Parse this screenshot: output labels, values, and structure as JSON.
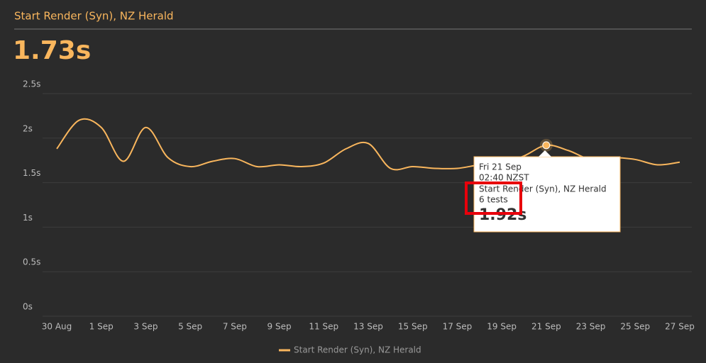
{
  "header": {
    "title": "Start Render (Syn), NZ Herald",
    "headline": "1.73s"
  },
  "chart_data": {
    "type": "line",
    "categories": [
      "30 Aug",
      null,
      "1 Sep",
      null,
      "3 Sep",
      null,
      "5 Sep",
      null,
      "7 Sep",
      null,
      "9 Sep",
      null,
      "11 Sep",
      null,
      "13 Sep",
      null,
      "15 Sep",
      null,
      "17 Sep",
      null,
      "19 Sep",
      null,
      "21 Sep",
      null,
      "23 Sep",
      null,
      "25 Sep",
      null,
      "27 Sep"
    ],
    "series": [
      {
        "name": "Start Render (Syn), NZ Herald",
        "color": "#f9b65d",
        "values": [
          1.88,
          2.2,
          2.12,
          1.74,
          2.12,
          1.78,
          1.68,
          1.74,
          1.77,
          1.68,
          1.7,
          1.68,
          1.72,
          1.88,
          1.94,
          1.66,
          1.68,
          1.66,
          1.66,
          1.7,
          1.72,
          1.8,
          1.92,
          1.86,
          1.76,
          1.78,
          1.76,
          1.7,
          1.73
        ]
      }
    ],
    "ylim": [
      0,
      2.5
    ],
    "yticks": [
      {
        "value": 0,
        "label": "0s"
      },
      {
        "value": 0.5,
        "label": "0.5s"
      },
      {
        "value": 1,
        "label": "1s"
      },
      {
        "value": 1.5,
        "label": "1.5s"
      },
      {
        "value": 2,
        "label": "2s"
      },
      {
        "value": 2.5,
        "label": "2.5s"
      }
    ],
    "grid": true
  },
  "tooltip": {
    "date": "Fri 21 Sep",
    "time": "02:40 NZST",
    "series": "Start Render (Syn), NZ Herald",
    "count": "6 tests",
    "value": "1.92s"
  }
}
